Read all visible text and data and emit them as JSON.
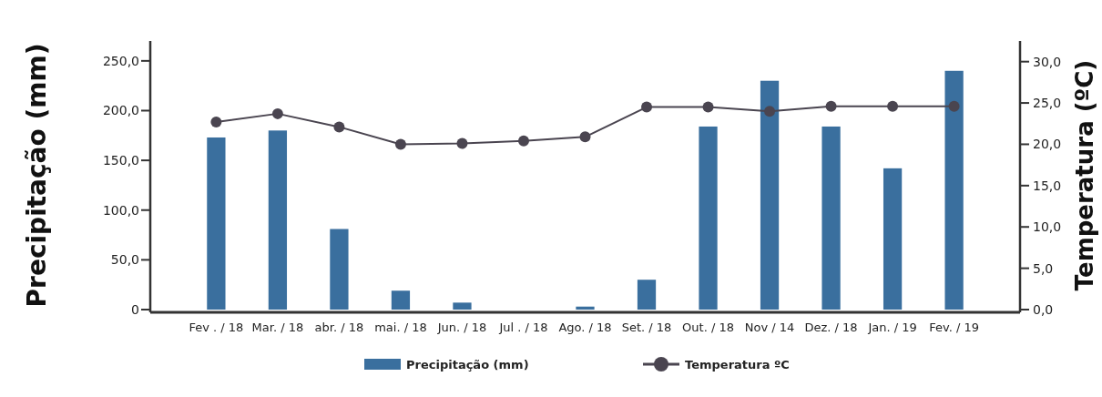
{
  "chart_data": {
    "type": "bar",
    "categories": [
      "Fev . / 18",
      "Mar. / 18",
      "abr. / 18",
      "mai. / 18",
      "Jun. / 18",
      "Jul . / 18",
      "Ago. / 18",
      "Set. / 18",
      "Out. / 18",
      "Nov / 14",
      "Dez. / 18",
      "Jan. / 19",
      "Fev. / 19"
    ],
    "series": [
      {
        "name": "Precipitação (mm)",
        "color": "#3a6f9e",
        "values": [
          173,
          180,
          81,
          19,
          7,
          0,
          3,
          30,
          184,
          230,
          184,
          142,
          240
        ]
      },
      {
        "name": "Temperatura ºC",
        "type": "line",
        "axis": "y2",
        "color": "#4a4550",
        "values": [
          22.7,
          23.7,
          22.1,
          20.0,
          20.1,
          20.4,
          20.9,
          24.5,
          24.5,
          24.0,
          24.6,
          24.6,
          24.6
        ]
      }
    ],
    "ylabel": "Precipitação (mm)",
    "y2label": "Temperatura (ºC)",
    "ylim": [
      0,
      270
    ],
    "yticks": [
      {
        "value": 0,
        "label": "0"
      },
      {
        "value": 50,
        "label": "50,0"
      },
      {
        "value": 100,
        "label": "100,0"
      },
      {
        "value": 150,
        "label": "150,0"
      },
      {
        "value": 200,
        "label": "200,0"
      },
      {
        "value": 250,
        "label": "250,0"
      }
    ],
    "y2lim": [
      0,
      32.5
    ],
    "y2ticks": [
      {
        "value": 0,
        "label": "0,0"
      },
      {
        "value": 5,
        "label": "5,0"
      },
      {
        "value": 10,
        "label": "10,0"
      },
      {
        "value": 15,
        "label": "15,0"
      },
      {
        "value": 20,
        "label": "20,0"
      },
      {
        "value": 25,
        "label": "25,0"
      },
      {
        "value": 30,
        "label": "30,0"
      }
    ],
    "marker": "circle",
    "legend": "bottom",
    "grid": false
  }
}
